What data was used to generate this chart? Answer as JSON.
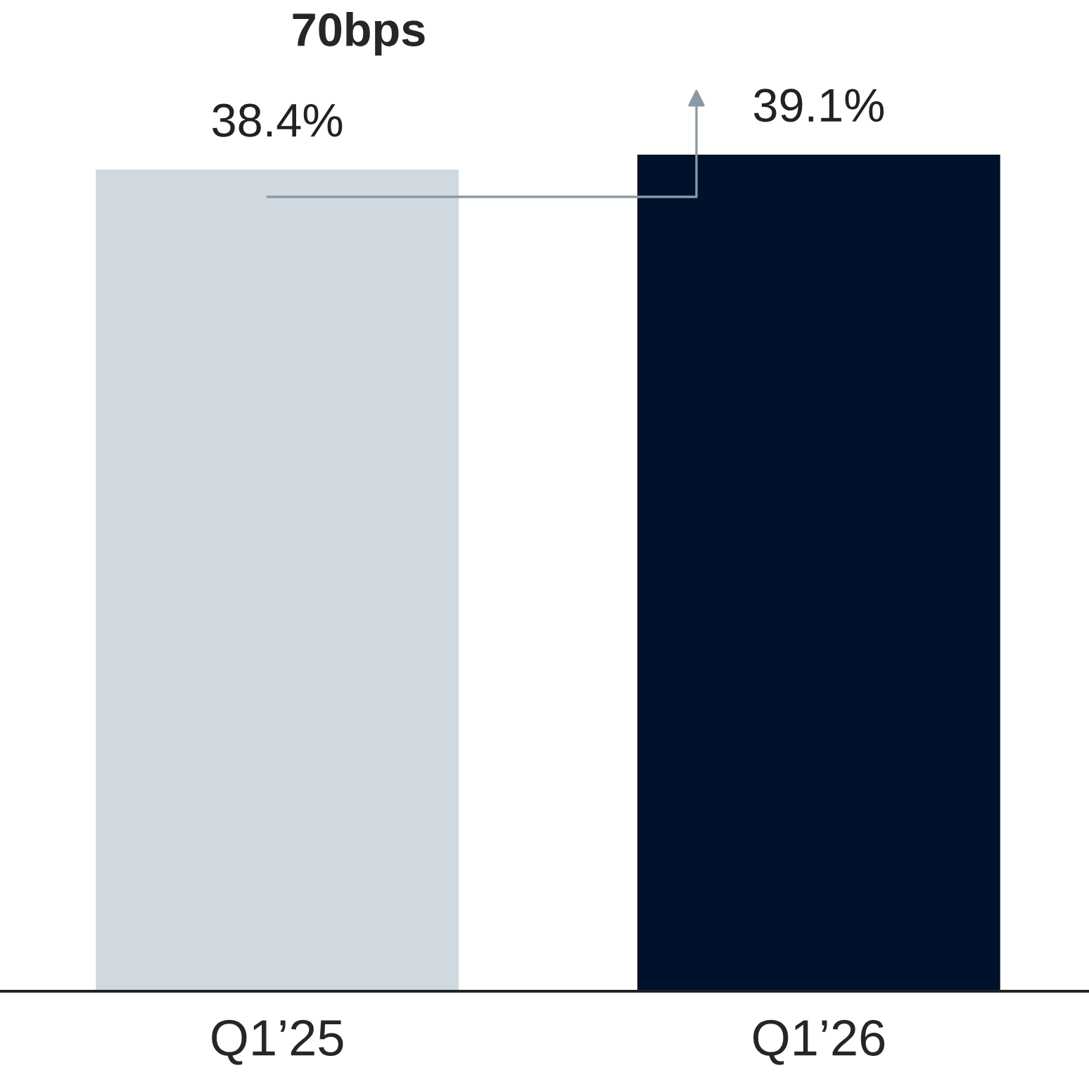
{
  "chart_data": {
    "type": "bar",
    "categories": [
      "Q1’25",
      "Q1’26"
    ],
    "values": [
      38.4,
      39.1
    ],
    "colors": [
      "#cfd9df",
      "#00112c"
    ],
    "value_labels": [
      "38.4%",
      "39.1%"
    ],
    "annotations": [
      "70bps"
    ]
  }
}
